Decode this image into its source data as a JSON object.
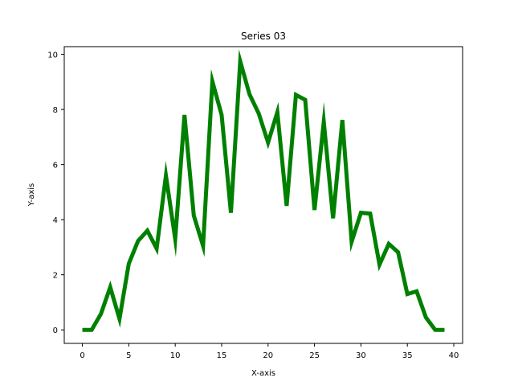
{
  "chart_data": {
    "type": "line",
    "title": "Series 03",
    "xlabel": "X-axis",
    "ylabel": "Y-axis",
    "xlim": [
      -1.95,
      40.95
    ],
    "ylim": [
      -0.49,
      10.28
    ],
    "xticks": [
      0,
      5,
      10,
      15,
      20,
      25,
      30,
      35,
      40
    ],
    "yticks": [
      0,
      2,
      4,
      6,
      8,
      10
    ],
    "grid": false,
    "legend": "none",
    "series": [
      {
        "color": "#008000",
        "x": [
          0,
          1,
          2,
          3,
          4,
          5,
          6,
          7,
          8,
          9,
          10,
          11,
          12,
          13,
          14,
          15,
          16,
          17,
          18,
          19,
          20,
          21,
          22,
          23,
          24,
          25,
          26,
          27,
          28,
          29,
          30,
          31,
          32,
          33,
          34,
          35,
          36,
          37,
          38,
          39
        ],
        "values": [
          0.0,
          0.0,
          0.58,
          1.55,
          0.4,
          2.4,
          3.23,
          3.6,
          2.95,
          5.6,
          3.3,
          7.8,
          4.15,
          3.05,
          9.02,
          7.8,
          4.25,
          9.75,
          8.55,
          7.85,
          6.8,
          7.9,
          4.5,
          8.53,
          8.35,
          4.35,
          7.55,
          4.05,
          7.62,
          3.2,
          4.25,
          4.22,
          2.37,
          3.12,
          2.82,
          1.3,
          1.4,
          0.45,
          0.0,
          0.0
        ]
      }
    ]
  }
}
